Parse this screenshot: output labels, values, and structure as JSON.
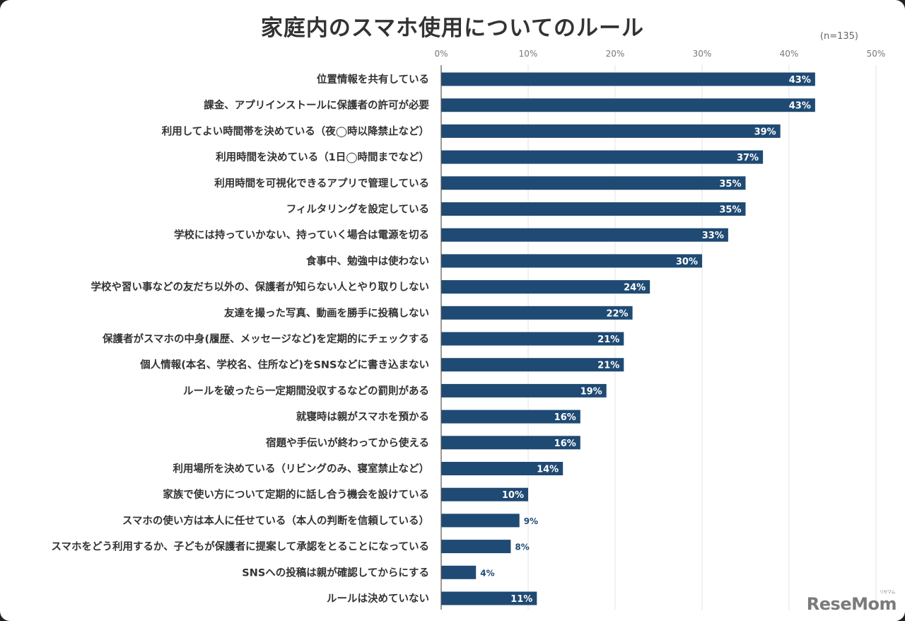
{
  "chart_data": {
    "type": "bar",
    "orientation": "horizontal",
    "title": "家庭内のスマホ使用についてのルール",
    "note": "(n=135)",
    "xlim": [
      0,
      50
    ],
    "x_ticks": [
      "0%",
      "10%",
      "20%",
      "30%",
      "40%",
      "50%"
    ],
    "grid": true,
    "bar_color": "#1f4a73",
    "categories": [
      "位置情報を共有している",
      "課金、アプリインストールに保護者の許可が必要",
      "利用してよい時間帯を決めている（夜◯時以降禁止など）",
      "利用時間を決めている（1日◯時間までなど）",
      "利用時間を可視化できるアプリで管理している",
      "フィルタリングを設定している",
      "学校には持っていかない、持っていく場合は電源を切る",
      "食事中、勉強中は使わない",
      "学校や習い事などの友だち以外の、保護者が知らない人とやり取りしない",
      "友達を撮った写真、動画を勝手に投稿しない",
      "保護者がスマホの中身(履歴、メッセージなど)を定期的にチェックする",
      "個人情報(本名、学校名、住所など)をSNSなどに書き込まない",
      "ルールを破ったら一定期間没収するなどの罰則がある",
      "就寝時は親がスマホを預かる",
      "宿題や手伝いが終わってから使える",
      "利用場所を決めている（リビングのみ、寝室禁止など）",
      "家族で使い方について定期的に話し合う機会を設けている",
      "スマホの使い方は本人に任せている（本人の判断を信頼している）",
      "スマホをどう利用するか、子どもが保護者に提案して承認をとることになっている",
      "SNSへの投稿は親が確認してからにする",
      "ルールは決めていない"
    ],
    "values": [
      43,
      43,
      39,
      37,
      35,
      35,
      33,
      30,
      24,
      22,
      21,
      21,
      19,
      16,
      16,
      14,
      10,
      9,
      8,
      4,
      11
    ],
    "value_labels": [
      "43%",
      "43%",
      "39%",
      "37%",
      "35%",
      "35%",
      "33%",
      "30%",
      "24%",
      "22%",
      "21%",
      "21%",
      "19%",
      "16%",
      "16%",
      "14%",
      "10%",
      "9%",
      "8%",
      "4%",
      "11%"
    ],
    "exact_values": [
      43,
      43,
      39.3,
      37,
      34.8,
      34.8,
      32.6,
      30.4,
      24.4,
      22.2,
      21.5,
      21.5,
      19.3,
      15.6,
      15.6,
      14.1,
      10.4,
      8.9,
      8.1,
      4.4,
      11.1
    ]
  },
  "watermark": {
    "text": "ReseMom",
    "ruby": "リセマム"
  }
}
